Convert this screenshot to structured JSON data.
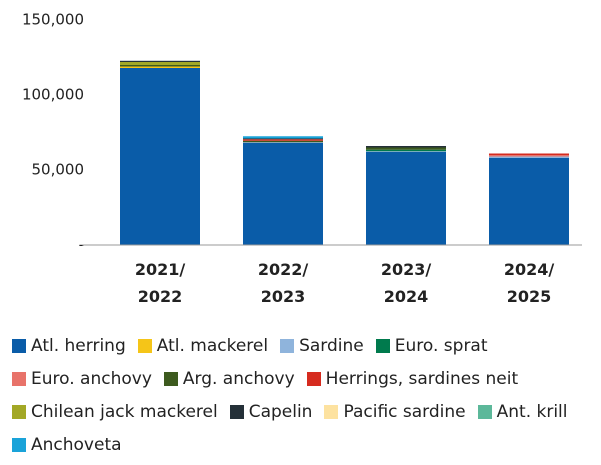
{
  "chart_data": {
    "type": "stacked_bar",
    "categories": [
      "2021/ 2022",
      "2022/ 2023",
      "2023/ 2024",
      "2024/ 2025"
    ],
    "series": [
      {
        "name": "Atl. herring",
        "color": "#0a5ca8",
        "values": [
          118000,
          68000,
          62000,
          58000
        ]
      },
      {
        "name": "Atl. mackerel",
        "color": "#f5c518",
        "values": [
          1000,
          0,
          0,
          0
        ]
      },
      {
        "name": "Sardine",
        "color": "#8fb4dc",
        "values": [
          0,
          500,
          500,
          1000
        ]
      },
      {
        "name": "Euro. sprat",
        "color": "#007a4d",
        "values": [
          0,
          0,
          1000,
          0
        ]
      },
      {
        "name": "Euro. anchovy",
        "color": "#e8736a",
        "values": [
          0,
          0,
          0,
          1000
        ]
      },
      {
        "name": "Arg. anchovy",
        "color": "#3d5a1e",
        "values": [
          1000,
          1000,
          1500,
          0
        ]
      },
      {
        "name": "Herrings, sardines neit",
        "color": "#d62b1f",
        "values": [
          0,
          1000,
          0,
          1000
        ]
      },
      {
        "name": "Chilean jack mackerel",
        "color": "#a3a826",
        "values": [
          2000,
          0,
          0,
          0
        ]
      },
      {
        "name": "Capelin",
        "color": "#243038",
        "values": [
          800,
          500,
          1000,
          0
        ]
      },
      {
        "name": "Pacific sardine",
        "color": "#fde2a0",
        "values": [
          0,
          0,
          0,
          0
        ]
      },
      {
        "name": "Ant. krill",
        "color": "#5cb89a",
        "values": [
          0,
          0,
          0,
          0
        ]
      },
      {
        "name": "Anchoveta",
        "color": "#1aa3d9",
        "values": [
          0,
          1500,
          0,
          0
        ]
      }
    ],
    "ylim": [
      0,
      150000
    ],
    "yticks": [
      {
        "value": 0,
        "label": "-"
      },
      {
        "value": 50000,
        "label": "50,000"
      },
      {
        "value": 100000,
        "label": "100,000"
      },
      {
        "value": 150000,
        "label": "150,000"
      }
    ],
    "grid": false
  }
}
